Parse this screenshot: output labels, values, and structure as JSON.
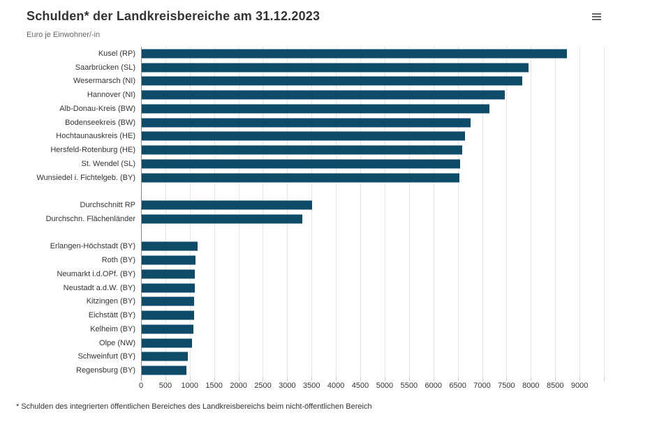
{
  "header": {
    "title": "Schulden* der Landkreisbereiche am 31.12.2023",
    "subtitle": "Euro je Einwohner/-in",
    "menu_icon": "hamburger-icon"
  },
  "footnote": "* Schulden des integrierten öffentlichen Bereiches des Landkreisbereichs beim nicht-öffentlichen Bereich",
  "colors": {
    "bar": "#0e4b68",
    "title": "#333333",
    "subtitle": "#666666",
    "label": "#333333",
    "gridline": "#e6e6e6",
    "axis_line": "#888888",
    "tick": "#cccccc",
    "menu_icon": "#666666"
  },
  "chart_data": {
    "type": "bar",
    "orientation": "horizontal",
    "title": "Schulden* der Landkreisbereiche am 31.12.2023",
    "subtitle": "Euro je Einwohner/-in",
    "xlabel": "Euro je Einwohner/-in",
    "ylabel": "",
    "xlim": [
      0,
      9500
    ],
    "x_tick_step": 500,
    "x_tick_labels": [
      "0",
      "500",
      "1000",
      "1500",
      "2000",
      "2500",
      "3000",
      "3500",
      "4000",
      "4500",
      "5000",
      "5500",
      "6000",
      "6500",
      "7000",
      "7500",
      "8000",
      "8500",
      "9000"
    ],
    "grid": true,
    "legend": false,
    "rows": [
      {
        "label": "Kusel (RP)",
        "value": 8730
      },
      {
        "label": "Saarbrücken (SL)",
        "value": 7940
      },
      {
        "label": "Wesermarsch (NI)",
        "value": 7810
      },
      {
        "label": "Hannover (NI)",
        "value": 7455
      },
      {
        "label": "Alb-Donau-Kreis (BW)",
        "value": 7140
      },
      {
        "label": "Bodenseekreis (BW)",
        "value": 6755
      },
      {
        "label": "Hochtaunauskreis (HE)",
        "value": 6640
      },
      {
        "label": "Hersfeld-Rotenburg (HE)",
        "value": 6580
      },
      {
        "label": "St. Wendel (SL)",
        "value": 6540
      },
      {
        "label": "Wunsiedel i. Fichtelgeb. (BY)",
        "value": 6525
      },
      {
        "label": "",
        "value": null
      },
      {
        "label": "Durchschnitt RP",
        "value": 3495
      },
      {
        "label": "Durchschn. Flächenländer",
        "value": 3290
      },
      {
        "label": "",
        "value": null
      },
      {
        "label": "Erlangen-Höchstadt (BY)",
        "value": 1140
      },
      {
        "label": "Roth (BY)",
        "value": 1110
      },
      {
        "label": "Neumarkt i.d.OPf. (BY)",
        "value": 1095
      },
      {
        "label": "Neustadt a.d.W. (BY)",
        "value": 1085
      },
      {
        "label": "Kitzingen (BY)",
        "value": 1080
      },
      {
        "label": "Eichstätt (BY)",
        "value": 1075
      },
      {
        "label": "Kelheim (BY)",
        "value": 1055
      },
      {
        "label": "Olpe (NW)",
        "value": 1025
      },
      {
        "label": "Schweinfurt (BY)",
        "value": 950
      },
      {
        "label": "Regensburg (BY)",
        "value": 920
      }
    ]
  }
}
